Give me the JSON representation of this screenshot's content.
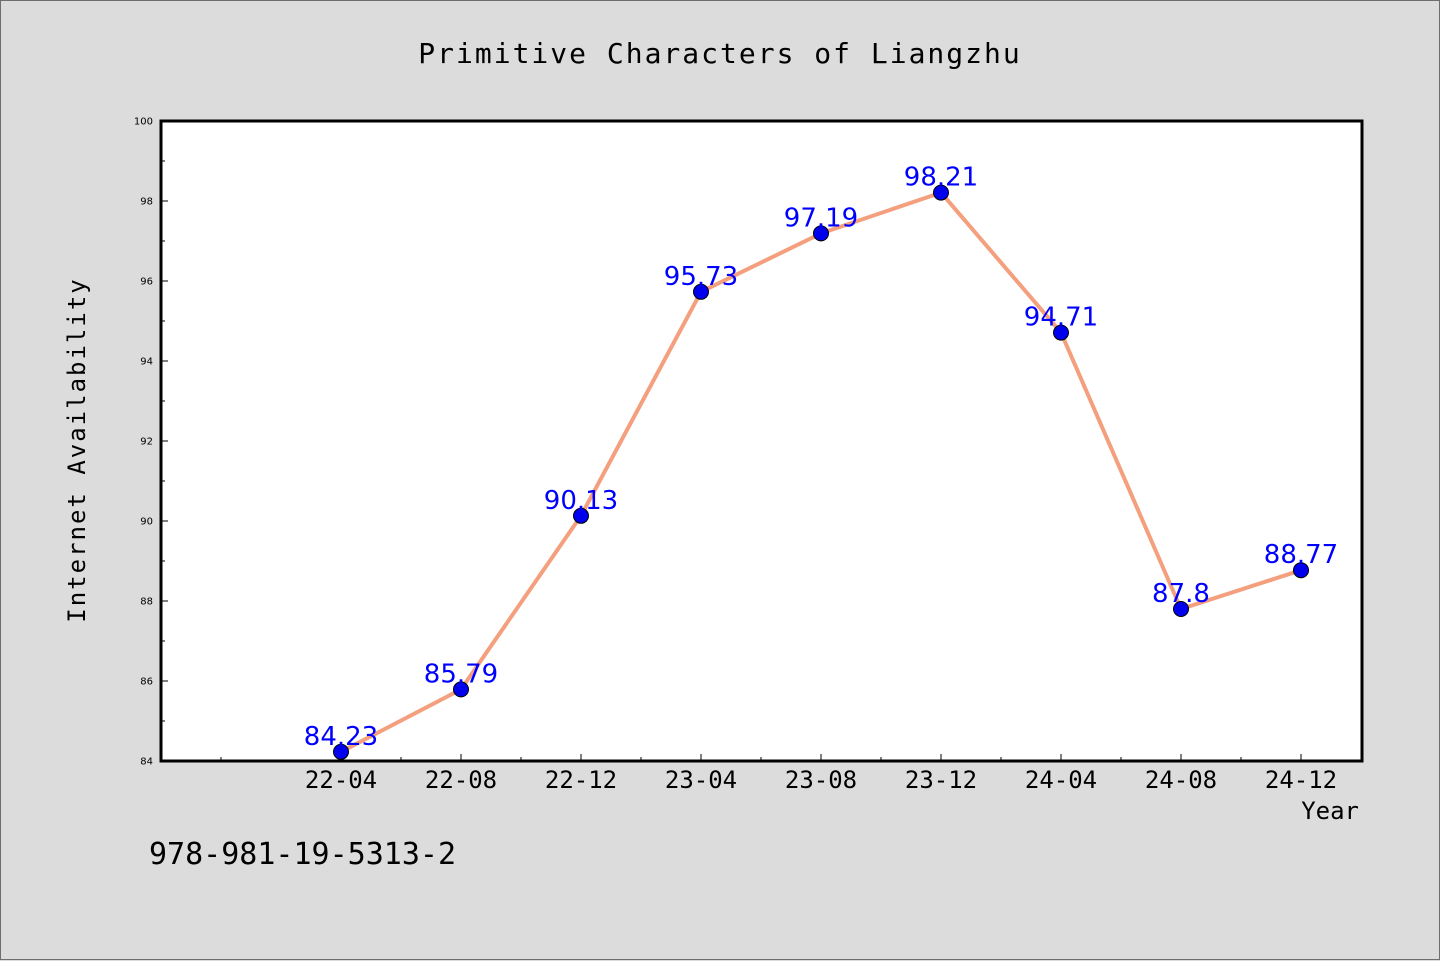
{
  "chart_data": {
    "type": "line",
    "title": "Primitive Characters of Liangzhu",
    "xlabel": "Year",
    "ylabel": "Internet Availability",
    "categories": [
      "22-04",
      "22-08",
      "22-12",
      "23-04",
      "23-08",
      "23-12",
      "24-04",
      "24-08",
      "24-12"
    ],
    "series": [
      {
        "values": [
          84.23,
          85.79,
          90.13,
          95.73,
          97.19,
          98.21,
          94.71,
          87.8,
          88.77
        ]
      }
    ],
    "data_labels": [
      "84.23",
      "85.79",
      "90.13",
      "95.73",
      "97.19",
      "98.21",
      "94.71",
      "87.8",
      "88.77"
    ],
    "ylim": [
      84,
      100
    ],
    "y_ticks": [
      84,
      86,
      88,
      90,
      92,
      94,
      96,
      98,
      100
    ],
    "line_color": "#f4a07e",
    "marker_color": "#0000ee",
    "label_color": "#0000ff",
    "grid": false,
    "legend": "none"
  },
  "footer": {
    "code": "978-981-19-5313-2"
  }
}
